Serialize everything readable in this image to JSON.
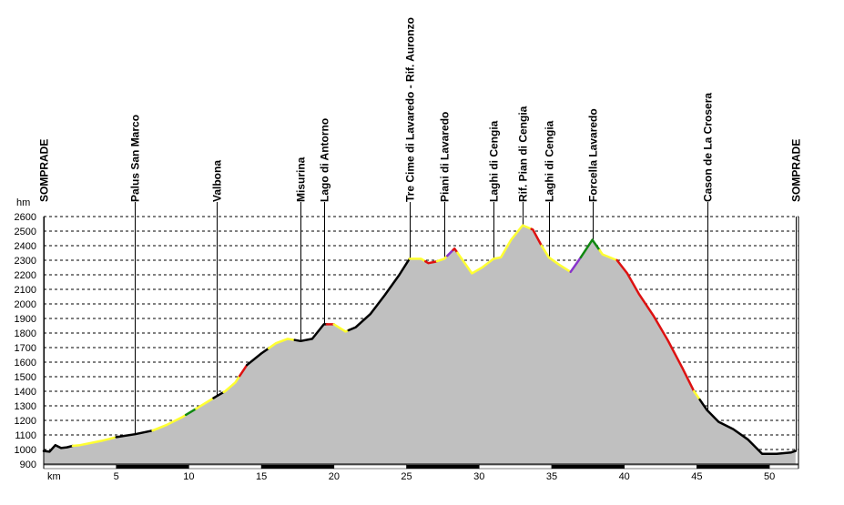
{
  "chart_data": {
    "type": "area",
    "xlabel": "km",
    "ylabel": "hm",
    "xlim": [
      0,
      52
    ],
    "ylim": [
      900,
      2600
    ],
    "y_ticks": [
      900,
      1000,
      1100,
      1200,
      1300,
      1400,
      1500,
      1600,
      1700,
      1800,
      1900,
      2000,
      2100,
      2200,
      2300,
      2400,
      2500,
      2600
    ],
    "x_ticks": [
      5,
      10,
      15,
      20,
      25,
      30,
      35,
      40,
      45,
      50
    ],
    "grid": "horizontal-dashed",
    "fill_color": "#c0c0c0",
    "segment_colors": {
      "black": "#000000",
      "yellow": "#ffff33",
      "red": "#dd1111",
      "green": "#118811",
      "purple": "#8833cc"
    },
    "waypoints": [
      {
        "name": "SOMPRADE",
        "km": 0
      },
      {
        "name": "Palus San Marco",
        "km": 6.3
      },
      {
        "name": "Valbona",
        "km": 11.9
      },
      {
        "name": "Misurina",
        "km": 17.7
      },
      {
        "name": "Lago di Antorno",
        "km": 19.3
      },
      {
        "name": "Tre Cime di Lavaredo - Rif. Auronzo",
        "km": 25.2
      },
      {
        "name": "Piani di Lavaredo",
        "km": 27.6
      },
      {
        "name": "Laghi di Cengia",
        "km": 31.0
      },
      {
        "name": "Rif. Pian di Cengia",
        "km": 33.0
      },
      {
        "name": "Laghi di Cengia",
        "km": 34.8
      },
      {
        "name": "Forcella Lavaredo",
        "km": 37.8
      },
      {
        "name": "Cason de La Crosera",
        "km": 45.7
      },
      {
        "name": "SOMPRADE",
        "km": 51.8
      }
    ],
    "profile": [
      [
        0,
        990
      ],
      [
        0.4,
        985
      ],
      [
        0.8,
        1030
      ],
      [
        1.2,
        1010
      ],
      [
        1.6,
        1015
      ],
      [
        2.0,
        1025
      ],
      [
        2.5,
        1030
      ],
      [
        3.0,
        1040
      ],
      [
        4.0,
        1060
      ],
      [
        5.0,
        1085
      ],
      [
        6.3,
        1105
      ],
      [
        7.5,
        1130
      ],
      [
        8.5,
        1170
      ],
      [
        9.5,
        1220
      ],
      [
        10.5,
        1280
      ],
      [
        11.9,
        1365
      ],
      [
        12.5,
        1400
      ],
      [
        13.2,
        1460
      ],
      [
        14.0,
        1580
      ],
      [
        15.0,
        1660
      ],
      [
        16.0,
        1730
      ],
      [
        16.8,
        1760
      ],
      [
        17.7,
        1745
      ],
      [
        18.5,
        1760
      ],
      [
        19.3,
        1860
      ],
      [
        20.0,
        1860
      ],
      [
        20.8,
        1810
      ],
      [
        21.5,
        1840
      ],
      [
        22.5,
        1930
      ],
      [
        23.5,
        2060
      ],
      [
        24.5,
        2200
      ],
      [
        25.2,
        2310
      ],
      [
        26.0,
        2310
      ],
      [
        26.5,
        2280
      ],
      [
        27.0,
        2290
      ],
      [
        27.6,
        2310
      ],
      [
        28.3,
        2380
      ],
      [
        28.8,
        2310
      ],
      [
        29.5,
        2210
      ],
      [
        30.2,
        2250
      ],
      [
        31.0,
        2310
      ],
      [
        31.5,
        2320
      ],
      [
        32.2,
        2440
      ],
      [
        33.0,
        2540
      ],
      [
        33.7,
        2510
      ],
      [
        34.3,
        2400
      ],
      [
        34.8,
        2320
      ],
      [
        35.5,
        2270
      ],
      [
        36.3,
        2220
      ],
      [
        37.0,
        2320
      ],
      [
        37.8,
        2440
      ],
      [
        38.5,
        2340
      ],
      [
        39.5,
        2300
      ],
      [
        40.2,
        2210
      ],
      [
        41.0,
        2070
      ],
      [
        42.0,
        1920
      ],
      [
        43.0,
        1750
      ],
      [
        44.0,
        1560
      ],
      [
        44.8,
        1400
      ],
      [
        45.7,
        1270
      ],
      [
        46.5,
        1190
      ],
      [
        47.5,
        1140
      ],
      [
        48.5,
        1070
      ],
      [
        49.5,
        970
      ],
      [
        50.5,
        970
      ],
      [
        51.5,
        980
      ],
      [
        51.8,
        990
      ]
    ],
    "colored_segments": [
      {
        "color": "black",
        "from_km": 0,
        "to_km": 2.0
      },
      {
        "color": "yellow",
        "from_km": 2.0,
        "to_km": 5.0
      },
      {
        "color": "black",
        "from_km": 5.0,
        "to_km": 7.5
      },
      {
        "color": "yellow",
        "from_km": 7.5,
        "to_km": 9.8
      },
      {
        "color": "green",
        "from_km": 9.8,
        "to_km": 10.5
      },
      {
        "color": "yellow",
        "from_km": 10.5,
        "to_km": 11.7
      },
      {
        "color": "black",
        "from_km": 11.7,
        "to_km": 12.4
      },
      {
        "color": "yellow",
        "from_km": 12.4,
        "to_km": 13.5
      },
      {
        "color": "red",
        "from_km": 13.5,
        "to_km": 14.0
      },
      {
        "color": "black",
        "from_km": 14.0,
        "to_km": 15.5
      },
      {
        "color": "yellow",
        "from_km": 15.5,
        "to_km": 17.3
      },
      {
        "color": "black",
        "from_km": 17.3,
        "to_km": 19.5
      },
      {
        "color": "red",
        "from_km": 19.5,
        "to_km": 20.0
      },
      {
        "color": "yellow",
        "from_km": 20.0,
        "to_km": 21.0
      },
      {
        "color": "black",
        "from_km": 21.0,
        "to_km": 25.2
      },
      {
        "color": "yellow",
        "from_km": 25.2,
        "to_km": 26.3
      },
      {
        "color": "red",
        "from_km": 26.3,
        "to_km": 27.1
      },
      {
        "color": "yellow",
        "from_km": 27.1,
        "to_km": 27.8
      },
      {
        "color": "purple",
        "from_km": 27.8,
        "to_km": 28.2
      },
      {
        "color": "red",
        "from_km": 28.2,
        "to_km": 28.5
      },
      {
        "color": "yellow",
        "from_km": 28.5,
        "to_km": 33.6
      },
      {
        "color": "red",
        "from_km": 33.6,
        "to_km": 34.3
      },
      {
        "color": "yellow",
        "from_km": 34.3,
        "to_km": 36.3
      },
      {
        "color": "purple",
        "from_km": 36.3,
        "to_km": 37.0
      },
      {
        "color": "green",
        "from_km": 37.0,
        "to_km": 38.3
      },
      {
        "color": "yellow",
        "from_km": 38.3,
        "to_km": 39.5
      },
      {
        "color": "red",
        "from_km": 39.5,
        "to_km": 44.8
      },
      {
        "color": "yellow",
        "from_km": 44.8,
        "to_km": 45.2
      },
      {
        "color": "black",
        "from_km": 45.2,
        "to_km": 51.8
      }
    ]
  }
}
